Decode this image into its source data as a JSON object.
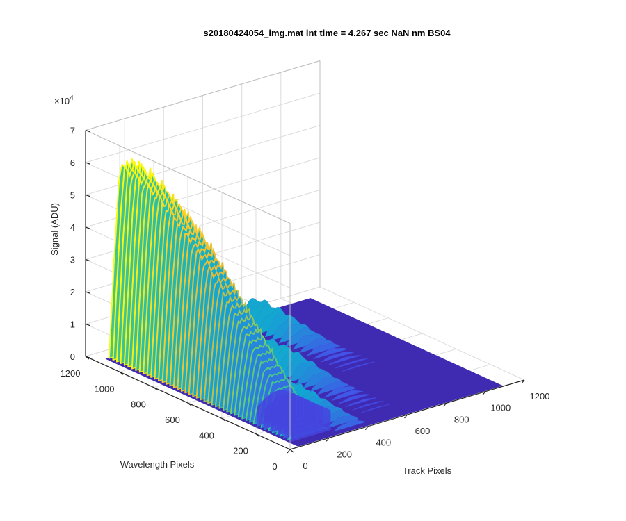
{
  "chart_data": {
    "type": "surface",
    "title": "s20180424054_img.mat int time = 4.267 sec  NaN nm BS04",
    "xlabel": "Track Pixels",
    "ylabel": "Wavelength Pixels",
    "zlabel": "Signal (ADU)",
    "z_exponent": "×10",
    "z_exponent_power": "4",
    "xlim": [
      0,
      1200
    ],
    "ylim": [
      0,
      1200
    ],
    "zlim": [
      0,
      7
    ],
    "x_ticks": [
      "0",
      "200",
      "400",
      "600",
      "800",
      "1000",
      "1200"
    ],
    "y_ticks": [
      "0",
      "200",
      "400",
      "600",
      "800",
      "1000",
      "1200"
    ],
    "z_ticks": [
      "0",
      "1",
      "2",
      "3",
      "4",
      "5",
      "6",
      "7"
    ],
    "grid": true,
    "colormap": "parula",
    "series": [
      {
        "track_range": [
          60,
          260
        ],
        "wavelength_peak_row": 1080,
        "peak_signal": 6.0
      },
      {
        "track_range": [
          260,
          420
        ],
        "wavelength_peak_row": 400,
        "peak_signal": 0.6
      },
      {
        "track_range": [
          460,
          620
        ],
        "wavelength_peak_row": 700,
        "peak_signal": 0.7
      },
      {
        "track_range": [
          690,
          860
        ],
        "wavelength_peak_row": 1050,
        "peak_signal": 0.7
      }
    ],
    "colors": {
      "low": "#3e26a8",
      "mid_low": "#2c7dde",
      "mid": "#13b0c6",
      "mid_high": "#5ac97a",
      "high": "#f9c22d",
      "peak": "#f9fb0e"
    }
  }
}
